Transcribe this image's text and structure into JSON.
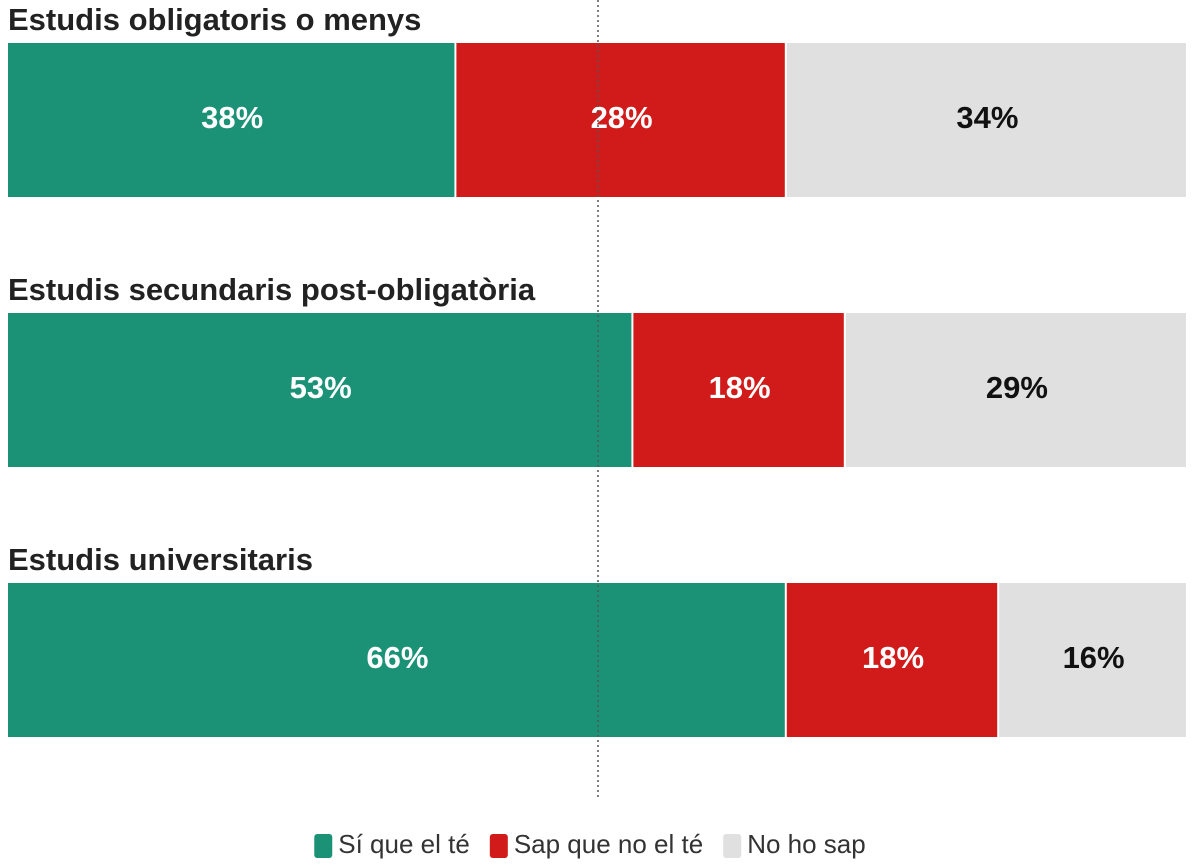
{
  "chart_data": {
    "type": "stacked-bar-horizontal",
    "categories": [
      "Estudis obligatoris o menys",
      "Estudis secundaris post-obligatòria",
      "Estudis universitaris"
    ],
    "series": [
      {
        "name": "Sí que el té",
        "color": "#1b9176",
        "label_color": "#ffffff",
        "values": [
          38,
          53,
          66
        ],
        "value_labels": [
          "38%",
          "53%",
          "66%"
        ]
      },
      {
        "name": "Sap que no el té",
        "color": "#d11b1b",
        "label_color": "#ffffff",
        "values": [
          28,
          18,
          18
        ],
        "value_labels": [
          "28%",
          "18%",
          "18%"
        ]
      },
      {
        "name": "No ho sap",
        "color": "#e0e0e0",
        "label_color": "#111111",
        "values": [
          34,
          29,
          16
        ],
        "value_labels": [
          "34%",
          "29%",
          "16%"
        ]
      }
    ],
    "xlim": [
      0,
      100
    ],
    "reference_line": 50,
    "legend": "bottom"
  }
}
